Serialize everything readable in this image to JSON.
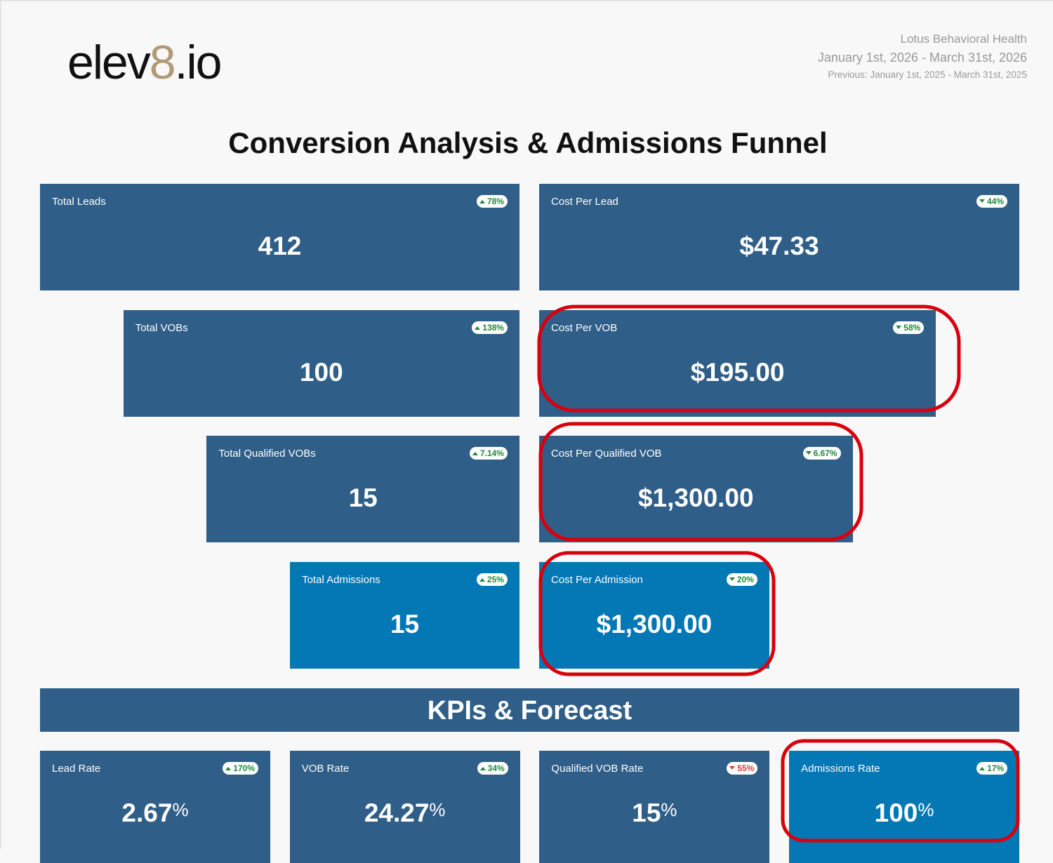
{
  "header": {
    "logo": [
      "elev",
      "8",
      ".io"
    ],
    "client": "Lotus Behavioral Health",
    "date_range": "January 1st, 2026 - March 31st, 2026",
    "previous": "Previous: January 1st, 2025 - March 31st, 2025"
  },
  "funnel": {
    "title": "Conversion Analysis & Admissions Funnel",
    "rows": [
      {
        "left": {
          "label": "Total Leads",
          "value": "412",
          "change": "78%",
          "trend": "up",
          "tone": "good"
        },
        "right": {
          "label": "Cost Per Lead",
          "value": "$47.33",
          "change": "44%",
          "trend": "down",
          "tone": "good"
        }
      },
      {
        "left": {
          "label": "Total VOBs",
          "value": "100",
          "change": "138%",
          "trend": "up",
          "tone": "good"
        },
        "right": {
          "label": "Cost Per VOB",
          "value": "$195.00",
          "change": "58%",
          "trend": "down",
          "tone": "good"
        }
      },
      {
        "left": {
          "label": "Total Qualified VOBs",
          "value": "15",
          "change": "7.14%",
          "trend": "up",
          "tone": "good"
        },
        "right": {
          "label": "Cost Per Qualified VOB",
          "value": "$1,300.00",
          "change": "6.67%",
          "trend": "down",
          "tone": "good"
        }
      },
      {
        "left": {
          "label": "Total Admissions",
          "value": "15",
          "change": "25%",
          "trend": "up",
          "tone": "good"
        },
        "right": {
          "label": "Cost Per Admission",
          "value": "$1,300.00",
          "change": "20%",
          "trend": "down",
          "tone": "good"
        }
      }
    ]
  },
  "kpis": {
    "title": "KPIs & Forecast",
    "cards": [
      {
        "label": "Lead Rate",
        "value": "2.67",
        "unit": "%",
        "change": "170%",
        "trend": "up",
        "tone": "good"
      },
      {
        "label": "VOB Rate",
        "value": "24.27",
        "unit": "%",
        "change": "34%",
        "trend": "up",
        "tone": "good"
      },
      {
        "label": "Qualified VOB Rate",
        "value": "15",
        "unit": "%",
        "change": "55%",
        "trend": "down",
        "tone": "bad"
      },
      {
        "label": "Admissions Rate",
        "value": "100",
        "unit": "%",
        "change": "17%",
        "trend": "up",
        "tone": "good"
      }
    ]
  }
}
